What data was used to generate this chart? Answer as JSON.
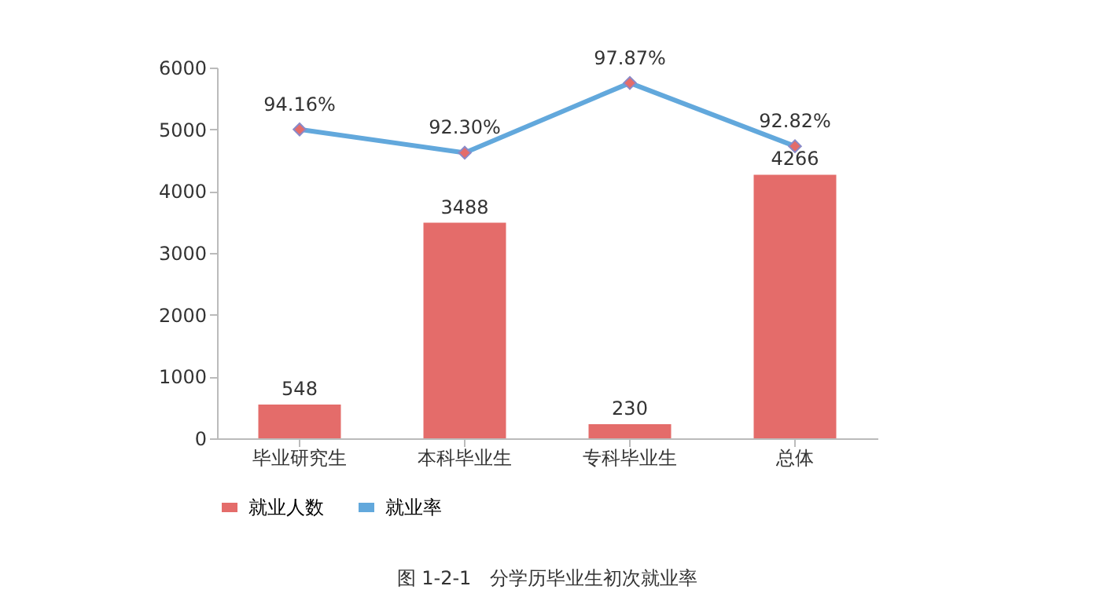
{
  "chart_data": {
    "type": "bar",
    "categories": [
      "毕业研究生",
      "本科毕业生",
      "专科毕业生",
      "总体"
    ],
    "series": [
      {
        "name": "就业人数",
        "color": "#e46c6a",
        "values": [
          548,
          3488,
          230,
          4266
        ],
        "value_labels": [
          "548",
          "3488",
          "230",
          "4266"
        ]
      },
      {
        "name": "就业率",
        "type": "line",
        "axis": "y2",
        "color": "#62a8dc",
        "values": [
          94.16,
          92.3,
          97.87,
          92.82
        ],
        "value_labels": [
          "94.16%",
          "92.30%",
          "97.87%",
          "92.82%"
        ]
      }
    ],
    "ylim": [
      0,
      6000
    ],
    "yticks": [
      0,
      1000,
      2000,
      3000,
      4000,
      5000,
      6000
    ],
    "y2lim": [
      69.5,
      99.1
    ],
    "grid": false,
    "legend": "bottom",
    "marker": "diamond",
    "line_style": "solid",
    "annotations": [
      "图 1-2-1　分学历毕业生初次就业率"
    ]
  }
}
